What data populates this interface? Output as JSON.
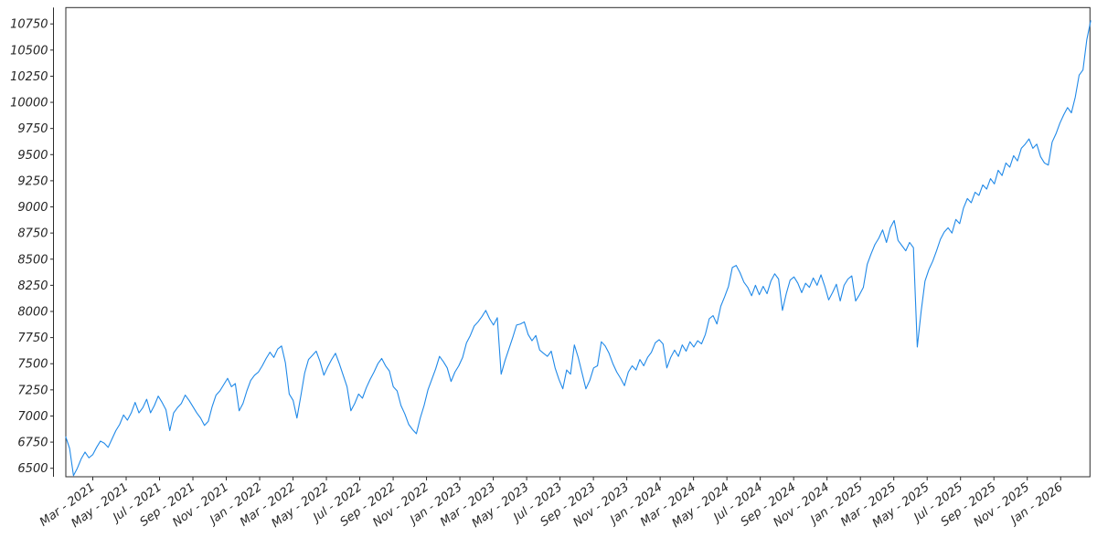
{
  "chart_data": {
    "type": "line",
    "title": "",
    "xlabel": "",
    "ylabel": "",
    "grid": false,
    "legend": "none",
    "line_color": "#2089e8",
    "axis_color": "#2b2b2b",
    "background_color": "#ffffff",
    "y_axis": {
      "tick_step": 250,
      "tick_values": [
        6500,
        6750,
        7000,
        7250,
        7500,
        7750,
        8000,
        8250,
        8500,
        8750,
        9000,
        9250,
        9500,
        9750,
        10000,
        10250,
        10500,
        10750
      ],
      "value_range_shown": [
        6380,
        10900
      ]
    },
    "x_axis": {
      "tick_labels": [
        "Mar - 2021",
        "May - 2021",
        "Jul - 2021",
        "Sep - 2021",
        "Nov - 2021",
        "Jan - 2022",
        "Mar - 2022",
        "May - 2022",
        "Jul - 2022",
        "Sep - 2022",
        "Nov - 2022",
        "Jan - 2023",
        "Mar - 2023",
        "May - 2023",
        "Jul - 2023",
        "Sep - 2023",
        "Nov - 2023",
        "Jan - 2024",
        "Mar - 2024",
        "May - 2024",
        "Jul - 2024",
        "Sep - 2024",
        "Nov - 2024",
        "Jan - 2025",
        "Mar - 2025",
        "May - 2025",
        "Jul - 2025",
        "Sep - 2025",
        "Nov - 2025",
        "Jan - 2026"
      ],
      "tick_months_from_first_label": [
        0,
        2,
        4,
        6,
        8,
        10,
        12,
        14,
        16,
        18,
        20,
        22,
        24,
        26,
        28,
        30,
        32,
        34,
        36,
        38,
        40,
        42,
        44,
        46,
        48,
        50,
        52,
        54,
        56,
        58
      ],
      "domain_months_from_first_label": {
        "start": -1.62,
        "end": 59.8
      }
    },
    "series": [
      {
        "cadence": "approx-weekly",
        "values": [
          6800,
          6690,
          6430,
          6500,
          6590,
          6655,
          6600,
          6630,
          6700,
          6760,
          6740,
          6700,
          6780,
          6860,
          6920,
          7010,
          6960,
          7030,
          7130,
          7030,
          7080,
          7160,
          7030,
          7100,
          7190,
          7130,
          7060,
          6860,
          7030,
          7080,
          7120,
          7200,
          7150,
          7090,
          7030,
          6980,
          6910,
          6950,
          7090,
          7200,
          7240,
          7300,
          7360,
          7280,
          7310,
          7050,
          7120,
          7240,
          7340,
          7390,
          7420,
          7480,
          7550,
          7610,
          7560,
          7640,
          7670,
          7510,
          7210,
          7150,
          6980,
          7190,
          7410,
          7540,
          7580,
          7620,
          7520,
          7390,
          7470,
          7540,
          7600,
          7500,
          7390,
          7280,
          7050,
          7120,
          7210,
          7170,
          7270,
          7350,
          7420,
          7500,
          7550,
          7480,
          7430,
          7280,
          7240,
          7100,
          7020,
          6920,
          6870,
          6830,
          6980,
          7100,
          7250,
          7350,
          7450,
          7570,
          7520,
          7460,
          7330,
          7420,
          7480,
          7560,
          7700,
          7770,
          7860,
          7900,
          7950,
          8010,
          7930,
          7870,
          7940,
          7400,
          7530,
          7640,
          7750,
          7870,
          7880,
          7900,
          7780,
          7720,
          7770,
          7630,
          7600,
          7570,
          7620,
          7460,
          7350,
          7260,
          7440,
          7400,
          7680,
          7560,
          7410,
          7260,
          7340,
          7460,
          7480,
          7710,
          7670,
          7600,
          7500,
          7420,
          7360,
          7290,
          7420,
          7480,
          7440,
          7540,
          7480,
          7560,
          7610,
          7700,
          7730,
          7690,
          7460,
          7560,
          7630,
          7570,
          7680,
          7620,
          7710,
          7660,
          7720,
          7690,
          7780,
          7930,
          7960,
          7880,
          8050,
          8140,
          8240,
          8420,
          8440,
          8370,
          8280,
          8230,
          8150,
          8250,
          8160,
          8240,
          8170,
          8290,
          8360,
          8310,
          8010,
          8170,
          8300,
          8330,
          8270,
          8180,
          8270,
          8230,
          8320,
          8250,
          8350,
          8240,
          8110,
          8180,
          8260,
          8100,
          8250,
          8310,
          8340,
          8100,
          8160,
          8230,
          8450,
          8550,
          8640,
          8700,
          8780,
          8660,
          8800,
          8870,
          8680,
          8630,
          8580,
          8660,
          8610,
          7660,
          8000,
          8290,
          8400,
          8480,
          8580,
          8690,
          8760,
          8800,
          8750,
          8880,
          8840,
          8990,
          9080,
          9040,
          9140,
          9110,
          9210,
          9170,
          9270,
          9220,
          9350,
          9300,
          9420,
          9380,
          9490,
          9440,
          9560,
          9600,
          9650,
          9560,
          9600,
          9480,
          9420,
          9400,
          9620,
          9700,
          9800,
          9880,
          9950,
          9900,
          10050,
          10260,
          10310,
          10600,
          10780
        ]
      }
    ],
    "annotations": []
  }
}
